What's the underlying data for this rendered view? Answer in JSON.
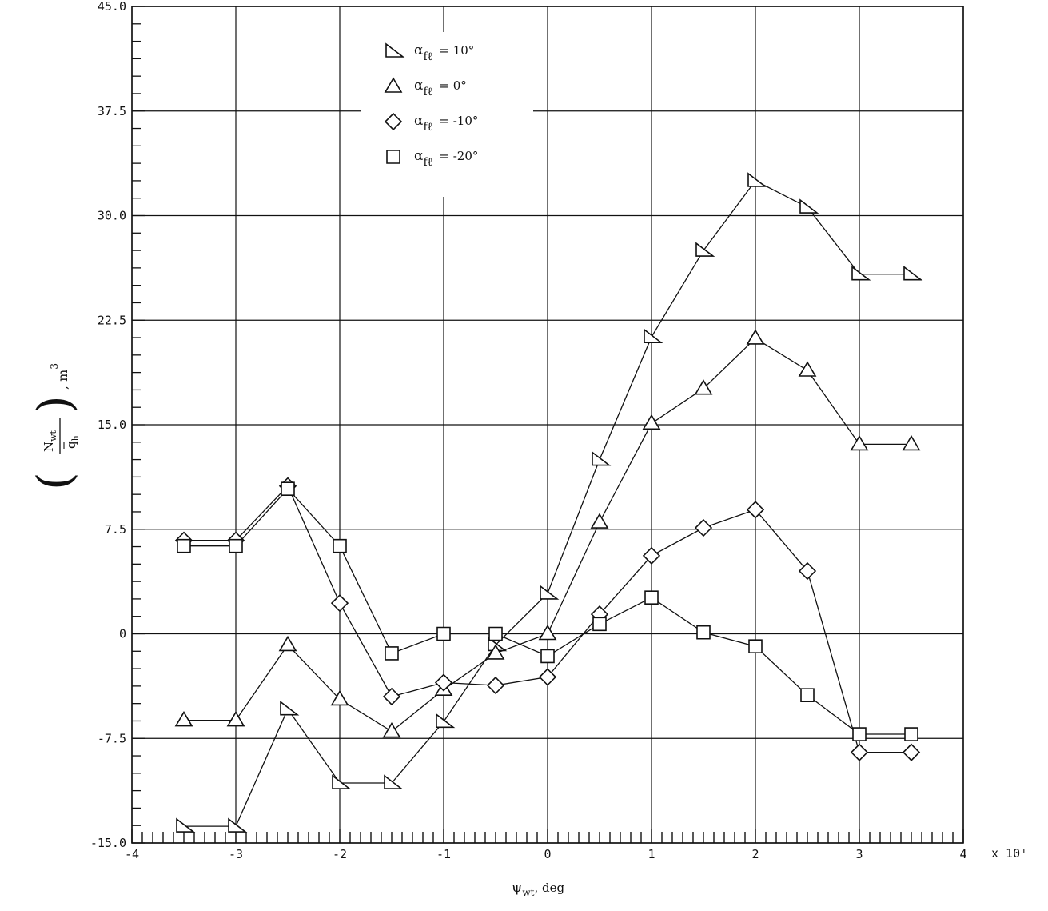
{
  "chart_data": {
    "type": "line",
    "x_scale_note": "x 10¹",
    "xlabel_symbol": "ψ",
    "xlabel_sub": "wt",
    "xlabel_unit": ", deg",
    "ylabel_num": "N",
    "ylabel_num_sub": "wt",
    "ylabel_den": "q",
    "ylabel_den_sub": "h",
    "ylabel_unit": "m",
    "ylabel_unit_exp": "3",
    "xlim": [
      -4,
      4
    ],
    "ylim": [
      -15,
      45
    ],
    "xticks": [
      "-4",
      "-3",
      "-2",
      "-1",
      "0",
      "1",
      "2",
      "3",
      "4"
    ],
    "yticks": [
      "-15.0",
      "-7.5",
      "0",
      "7.5",
      "15.0",
      "22.5",
      "30.0",
      "37.5",
      "45.0"
    ],
    "grid": true,
    "legend_position": "top-left",
    "series": [
      {
        "name": "α_fℓ = 10°",
        "legend_symbol": "α",
        "legend_sub": "fℓ",
        "legend_value": "=  10°",
        "marker": "right-triangle",
        "x": [
          -3.5,
          -3,
          -2.5,
          -2,
          -1.5,
          -1,
          -0.5,
          0,
          0.5,
          1,
          1.5,
          2,
          2.5,
          3,
          3.5
        ],
        "y": [
          -13.8,
          -13.8,
          -5.4,
          -10.7,
          -10.7,
          -6.3,
          -0.8,
          2.9,
          12.5,
          21.3,
          27.5,
          32.5,
          30.6,
          25.8,
          25.8
        ]
      },
      {
        "name": "α_fℓ = 0°",
        "legend_symbol": "α",
        "legend_sub": "fℓ",
        "legend_value": "=   0°",
        "marker": "triangle",
        "x": [
          -3.5,
          -3,
          -2.5,
          -2,
          -1.5,
          -1,
          -0.5,
          0,
          0.5,
          1,
          1.5,
          2,
          2.5,
          3,
          3.5
        ],
        "y": [
          -6.2,
          -6.2,
          -0.8,
          -4.7,
          -7.0,
          -4.0,
          -1.4,
          0.0,
          8.0,
          15.1,
          17.6,
          21.2,
          18.9,
          13.6,
          13.6
        ]
      },
      {
        "name": "α_fℓ = -10°",
        "legend_symbol": "α",
        "legend_sub": "fℓ",
        "legend_value": "= -10°",
        "marker": "diamond",
        "x": [
          -3.5,
          -3,
          -2.5,
          -2,
          -1.5,
          -1,
          -0.5,
          0,
          0.5,
          1,
          1.5,
          2,
          2.5,
          3,
          3.5
        ],
        "y": [
          6.7,
          6.7,
          10.6,
          2.2,
          -4.5,
          -3.5,
          -3.7,
          -3.1,
          1.4,
          5.6,
          7.6,
          8.9,
          4.5,
          -8.5,
          -8.5
        ]
      },
      {
        "name": "α_fℓ = -20°",
        "legend_symbol": "α",
        "legend_sub": "fℓ",
        "legend_value": "= -20°",
        "marker": "square",
        "x": [
          -3.5,
          -3,
          -2.5,
          -2,
          -1.5,
          -1,
          -0.5,
          0,
          0.5,
          1,
          1.5,
          2,
          2.5,
          3,
          3.5
        ],
        "y": [
          6.3,
          6.3,
          10.4,
          6.3,
          -1.4,
          0.0,
          0.0,
          -1.6,
          0.7,
          2.6,
          0.1,
          -0.9,
          -4.4,
          -7.2,
          -7.2
        ]
      }
    ]
  }
}
